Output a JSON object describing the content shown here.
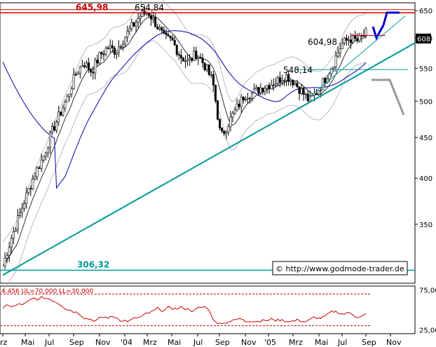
{
  "chart_data": [
    {
      "type": "candlestick",
      "title": "",
      "xlabel": "",
      "ylabel": "",
      "y_scale": "log",
      "ylim": [
        295,
        665
      ],
      "y_ticks": [
        650,
        600,
        550,
        500,
        450,
        400,
        350
      ],
      "x_ticks": [
        "rz",
        "Mai",
        "Jul",
        "Sep",
        "Nov",
        "'04",
        "Mrz",
        "Mai",
        "Jul",
        "Sep",
        "Nov",
        "'05",
        "Mrz",
        "Mai",
        "Jul",
        "Sep",
        "Nov"
      ],
      "last_price_label": "608",
      "price_annotations": [
        {
          "label": "654,84",
          "value": 654.84
        },
        {
          "label": "604,98",
          "value": 604.98
        },
        {
          "label": "548,14",
          "value": 548.14
        }
      ],
      "horizontal_lines": [
        {
          "label": "645,98",
          "value": 645.98,
          "color": "#cc0000"
        },
        {
          "label": "306,32",
          "value": 306.32,
          "color": "#009999"
        }
      ],
      "trendline_color": "#009999",
      "watermark": "© http://www.godmode-trader.de",
      "series": [
        {
          "kind": "ohlc_close",
          "points": [
            [
              "rz",
              310
            ],
            [
              "",
              335
            ],
            [
              "",
              358
            ],
            [
              "Mai",
              382
            ],
            [
              "",
              405
            ],
            [
              "",
              425
            ],
            [
              "Jul",
              455
            ],
            [
              "",
              480
            ],
            [
              "",
              505
            ],
            [
              "Sep",
              540
            ],
            [
              "",
              560
            ],
            [
              "",
              545
            ],
            [
              "Nov",
              570
            ],
            [
              "",
              585
            ],
            [
              "",
              578
            ],
            [
              "'04",
              600
            ],
            [
              "",
              620
            ],
            [
              "",
              640
            ],
            [
              "Mrz",
              648
            ],
            [
              "",
              625
            ],
            [
              "",
              600
            ],
            [
              "Mai",
              595
            ],
            [
              "",
              570
            ],
            [
              "",
              560
            ],
            [
              "Jul",
              575
            ],
            [
              "",
              555
            ],
            [
              "",
              530
            ],
            [
              "Sep",
              450
            ],
            [
              "",
              470
            ],
            [
              "",
              490
            ],
            [
              "Nov",
              510
            ],
            [
              "",
              512
            ],
            [
              "",
              520
            ],
            [
              "'05",
              525
            ],
            [
              "",
              530
            ],
            [
              "",
              540
            ],
            [
              "Mrz",
              530
            ],
            [
              "",
              515
            ],
            [
              "",
              500
            ],
            [
              "Mai",
              515
            ],
            [
              "",
              535
            ],
            [
              "",
              560
            ],
            [
              "Jul",
              590
            ],
            [
              "",
              600
            ],
            [
              "",
              595
            ],
            [
              "Sep",
              608
            ]
          ]
        }
      ],
      "projection_colors": [
        "#0000cc",
        "#999999"
      ]
    },
    {
      "type": "line",
      "title": "",
      "indicator_label": "4,456 UL=70,000 LL=30,000",
      "ylim": [
        20,
        80
      ],
      "y_ticks": [
        75,
        25
      ],
      "upper_level": 70,
      "lower_level": 30,
      "series": [
        {
          "kind": "oscillator",
          "color": "#cc0000"
        }
      ]
    }
  ]
}
